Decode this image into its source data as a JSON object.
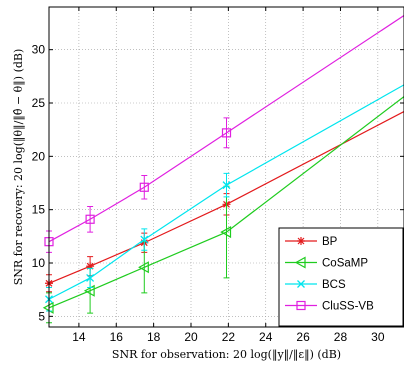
{
  "chart_data": {
    "type": "line",
    "xlabel": "SNR for observation: 20 log(‖y‖/‖ε‖) (dB)",
    "ylabel": "SNR for recovery: 20 log(‖θ‖/‖θ̂ − θ‖) (dB)",
    "xlim": [
      12.4,
      31.4
    ],
    "ylim": [
      4,
      34
    ],
    "xticks": [
      14,
      16,
      18,
      20,
      22,
      24,
      26,
      28,
      30
    ],
    "yticks": [
      5,
      10,
      15,
      20,
      25,
      30
    ],
    "grid": true,
    "legend_position": "bottom-right",
    "series": [
      {
        "name": "BP",
        "color": "#e31a1c",
        "marker": "star",
        "x": [
          12.4,
          14.6,
          17.5,
          21.9,
          31.4
        ],
        "y": [
          8.1,
          9.7,
          11.9,
          15.5,
          24.2
        ],
        "err": [
          0.8,
          0.9,
          0.9,
          1.0,
          null
        ]
      },
      {
        "name": "CoSaMP",
        "color": "#1fcc1f",
        "marker": "triangle-left",
        "x": [
          12.4,
          14.6,
          17.5,
          21.9,
          31.4
        ],
        "y": [
          5.8,
          7.4,
          9.6,
          12.9,
          25.6
        ],
        "err": [
          1.4,
          2.1,
          2.4,
          4.3,
          null
        ]
      },
      {
        "name": "BCS",
        "color": "#00e5ee",
        "marker": "x",
        "x": [
          12.4,
          14.6,
          17.5,
          21.9,
          31.4
        ],
        "y": [
          6.6,
          8.6,
          12.2,
          17.3,
          26.7
        ],
        "err": [
          1.1,
          0.9,
          1.0,
          1.1,
          null
        ]
      },
      {
        "name": "CluSS-VB",
        "color": "#e020e0",
        "marker": "square",
        "x": [
          12.4,
          14.6,
          17.5,
          21.9,
          31.4
        ],
        "y": [
          12.0,
          14.1,
          17.1,
          22.2,
          33.2
        ],
        "err": [
          1.0,
          1.2,
          1.1,
          1.4,
          null
        ]
      }
    ]
  }
}
